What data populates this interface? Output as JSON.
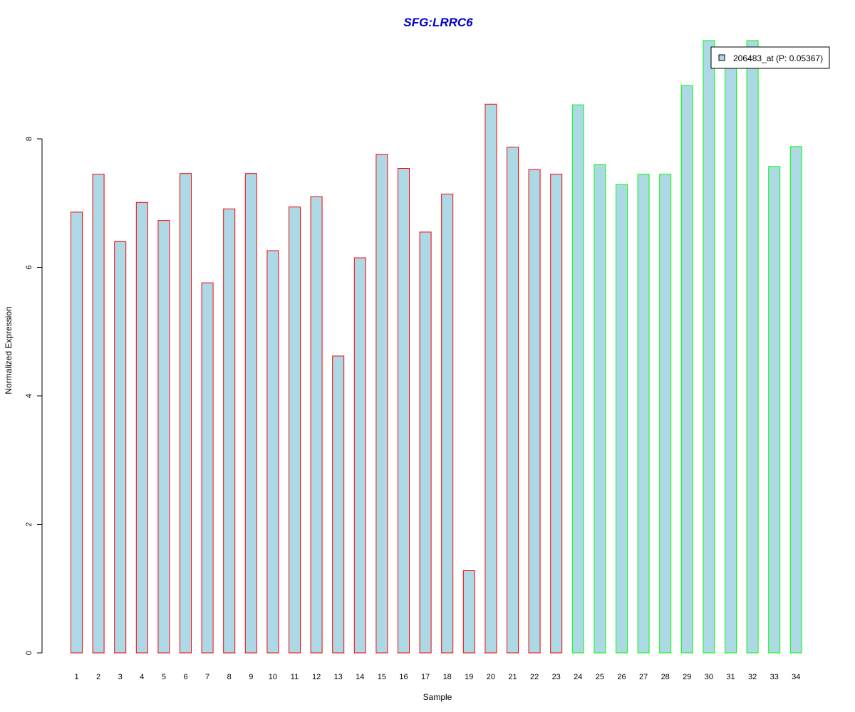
{
  "chart_data": {
    "type": "bar",
    "title": "SFG:LRRC6",
    "xlabel": "Sample",
    "ylabel": "Normalized Expression",
    "ylim": [
      0,
      9.6
    ],
    "yticks": [
      "0",
      "2",
      "4",
      "6",
      "8"
    ],
    "categories": [
      "1",
      "2",
      "3",
      "4",
      "5",
      "6",
      "7",
      "8",
      "9",
      "10",
      "11",
      "12",
      "13",
      "14",
      "15",
      "16",
      "17",
      "18",
      "19",
      "20",
      "21",
      "22",
      "23",
      "24",
      "25",
      "26",
      "27",
      "28",
      "29",
      "30",
      "31",
      "32",
      "33",
      "34"
    ],
    "series": [
      {
        "name": "206483_at (P: 0.05367)",
        "values": [
          6.86,
          7.45,
          6.4,
          7.01,
          6.73,
          7.46,
          5.76,
          6.91,
          7.46,
          6.26,
          6.94,
          7.1,
          4.62,
          6.15,
          7.76,
          7.54,
          6.55,
          7.14,
          1.28,
          8.54,
          7.87,
          7.52,
          7.45,
          8.53,
          7.6,
          7.29,
          7.45,
          7.45,
          8.83,
          9.53,
          9.2,
          9.53,
          7.57,
          7.88
        ],
        "fill": "#add8e6",
        "border_colors": [
          "#ff0000",
          "#ff0000",
          "#ff0000",
          "#ff0000",
          "#ff0000",
          "#ff0000",
          "#ff0000",
          "#ff0000",
          "#ff0000",
          "#ff0000",
          "#ff0000",
          "#ff0000",
          "#ff0000",
          "#ff0000",
          "#ff0000",
          "#ff0000",
          "#ff0000",
          "#ff0000",
          "#ff0000",
          "#ff0000",
          "#ff0000",
          "#ff0000",
          "#ff0000",
          "#00ff00",
          "#00ff00",
          "#00ff00",
          "#00ff00",
          "#00ff00",
          "#00ff00",
          "#00ff00",
          "#00ff00",
          "#00ff00",
          "#00ff00",
          "#00ff00"
        ]
      }
    ],
    "legend": {
      "placement": "top-right",
      "label": "206483_at (P: 0.05367)"
    },
    "grid": false
  }
}
